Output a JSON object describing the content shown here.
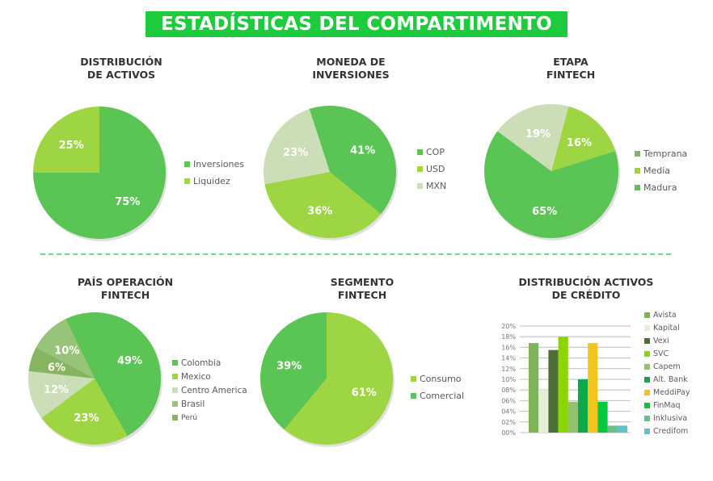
{
  "header": {
    "title": "ESTADÍSTICAS DEL COMPARTIMENTO"
  },
  "colors": {
    "title_bg": "#1ecb3c",
    "divider": "#6fd98a",
    "green_main": "#5ac454",
    "green_light": "#9ed643",
    "green_pale": "#cbdeb8",
    "green_mid": "#98c47a",
    "green_dark": "#86b460"
  },
  "chart_data": [
    {
      "id": "distribucion-activos",
      "type": "pie",
      "title": "DISTRIBUCIÓN DE ACTIVOS",
      "title_lines": [
        "DISTRIBUCIÓN",
        "DE ACTIVOS"
      ],
      "start_angle": 0,
      "slices": [
        {
          "label": "Inversiones",
          "value": 75,
          "display": "75%",
          "color": "#5ac454"
        },
        {
          "label": "Liquidez",
          "value": 25,
          "display": "25%",
          "color": "#9ed643"
        }
      ],
      "legend": [
        "Inversiones",
        "Liquidez"
      ]
    },
    {
      "id": "moneda-inversiones",
      "type": "pie",
      "title": "MONEDA DE INVERSIONES",
      "title_lines": [
        "MONEDA DE",
        "INVERSIONES"
      ],
      "start_angle": -18,
      "slices": [
        {
          "label": "COP",
          "value": 41,
          "display": "41%",
          "color": "#5ac454"
        },
        {
          "label": "USD",
          "value": 36,
          "display": "36%",
          "color": "#9ed643"
        },
        {
          "label": "MXN",
          "value": 23,
          "display": "23%",
          "color": "#cbdeb8"
        }
      ],
      "legend": [
        "COP",
        "USD",
        "MXN"
      ]
    },
    {
      "id": "etapa-fintech",
      "type": "pie",
      "title": "ETAPA FINTECH",
      "title_lines": [
        "ETAPA",
        "FINTECH"
      ],
      "start_angle": 15,
      "slices": [
        {
          "label": "Media",
          "value": 16,
          "display": "16%",
          "color": "#9ed643"
        },
        {
          "label": "Madura",
          "value": 65,
          "display": "65%",
          "color": "#5ac454"
        },
        {
          "label": "Temprana",
          "value": 19,
          "display": "19%",
          "color": "#cbdeb8"
        }
      ],
      "legend": [
        {
          "label": "Temprana",
          "color": "#86b460"
        },
        {
          "label": "Media",
          "color": "#9ed643"
        },
        {
          "label": "Madura",
          "color": "#5ac454"
        }
      ]
    },
    {
      "id": "pais-operacion",
      "type": "pie",
      "title": "PAÍS OPERACIÓN FINTECH",
      "title_lines": [
        "PAÍS OPERACIÓN",
        "FINTECH"
      ],
      "start_angle": -26,
      "slices": [
        {
          "label": "Colombia",
          "value": 49,
          "display": "49%",
          "color": "#5ac454"
        },
        {
          "label": "Mexico",
          "value": 23,
          "display": "23%",
          "color": "#9ed643"
        },
        {
          "label": "Centro America",
          "value": 12,
          "display": "12%",
          "color": "#cbdeb8"
        },
        {
          "label": "Perú",
          "value": 6,
          "display": "6%",
          "color": "#86b460"
        },
        {
          "label": "Brasil",
          "value": 10,
          "display": "10%",
          "color": "#98c47a"
        }
      ],
      "legend": [
        {
          "label": "Colombia",
          "color": "#5ac454"
        },
        {
          "label": "Mexico",
          "color": "#9ed643"
        },
        {
          "label": "Centro America",
          "color": "#cbdeb8"
        },
        {
          "label": "Brasil",
          "color": "#98c47a"
        },
        {
          "label": "Perú",
          "color": "#86b460"
        }
      ]
    },
    {
      "id": "segmento-fintech",
      "type": "pie",
      "title": "SEGMENTO FINTECH",
      "title_lines": [
        "SEGMENTO",
        "FINTECH"
      ],
      "start_angle": 0,
      "slices": [
        {
          "label": "Consumo",
          "value": 61,
          "display": "61%",
          "color": "#9ed643"
        },
        {
          "label": "Comercial",
          "value": 39,
          "display": "39%",
          "color": "#5ac454"
        }
      ],
      "legend": [
        "Consumo",
        "Comercial"
      ]
    },
    {
      "id": "distribucion-activos-credito",
      "type": "bar",
      "title": "DISTRIBUCIÓN ACTIVOS DE CRÉDITO",
      "title_lines": [
        "DISTRIBUCIÓN ACTIVOS",
        "DE CRÉDITO"
      ],
      "categories": [
        "Avista",
        "Kapital",
        "Vexi",
        "SVC",
        "Capem",
        "Alt. Bank",
        "MeddiPay",
        "FinMaq",
        "Inklusiva",
        "Credifom"
      ],
      "values": [
        16.8,
        8.0,
        15.5,
        18.0,
        5.8,
        10.0,
        16.8,
        5.8,
        1.3,
        1.3
      ],
      "colors": [
        "#7cb457",
        "#e4efd9",
        "#4e6e37",
        "#8bd600",
        "#93c26f",
        "#0fa84e",
        "#f2c51c",
        "#00c93c",
        "#6cbf8a",
        "#62c0c8"
      ],
      "ylim": [
        0,
        20
      ],
      "yticks": [
        "00%",
        "02%",
        "04%",
        "06%",
        "08%",
        "10%",
        "12%",
        "14%",
        "16%",
        "18%",
        "20%"
      ],
      "xlabel": "",
      "ylabel": "",
      "grid": true,
      "legend_position": "right"
    }
  ]
}
